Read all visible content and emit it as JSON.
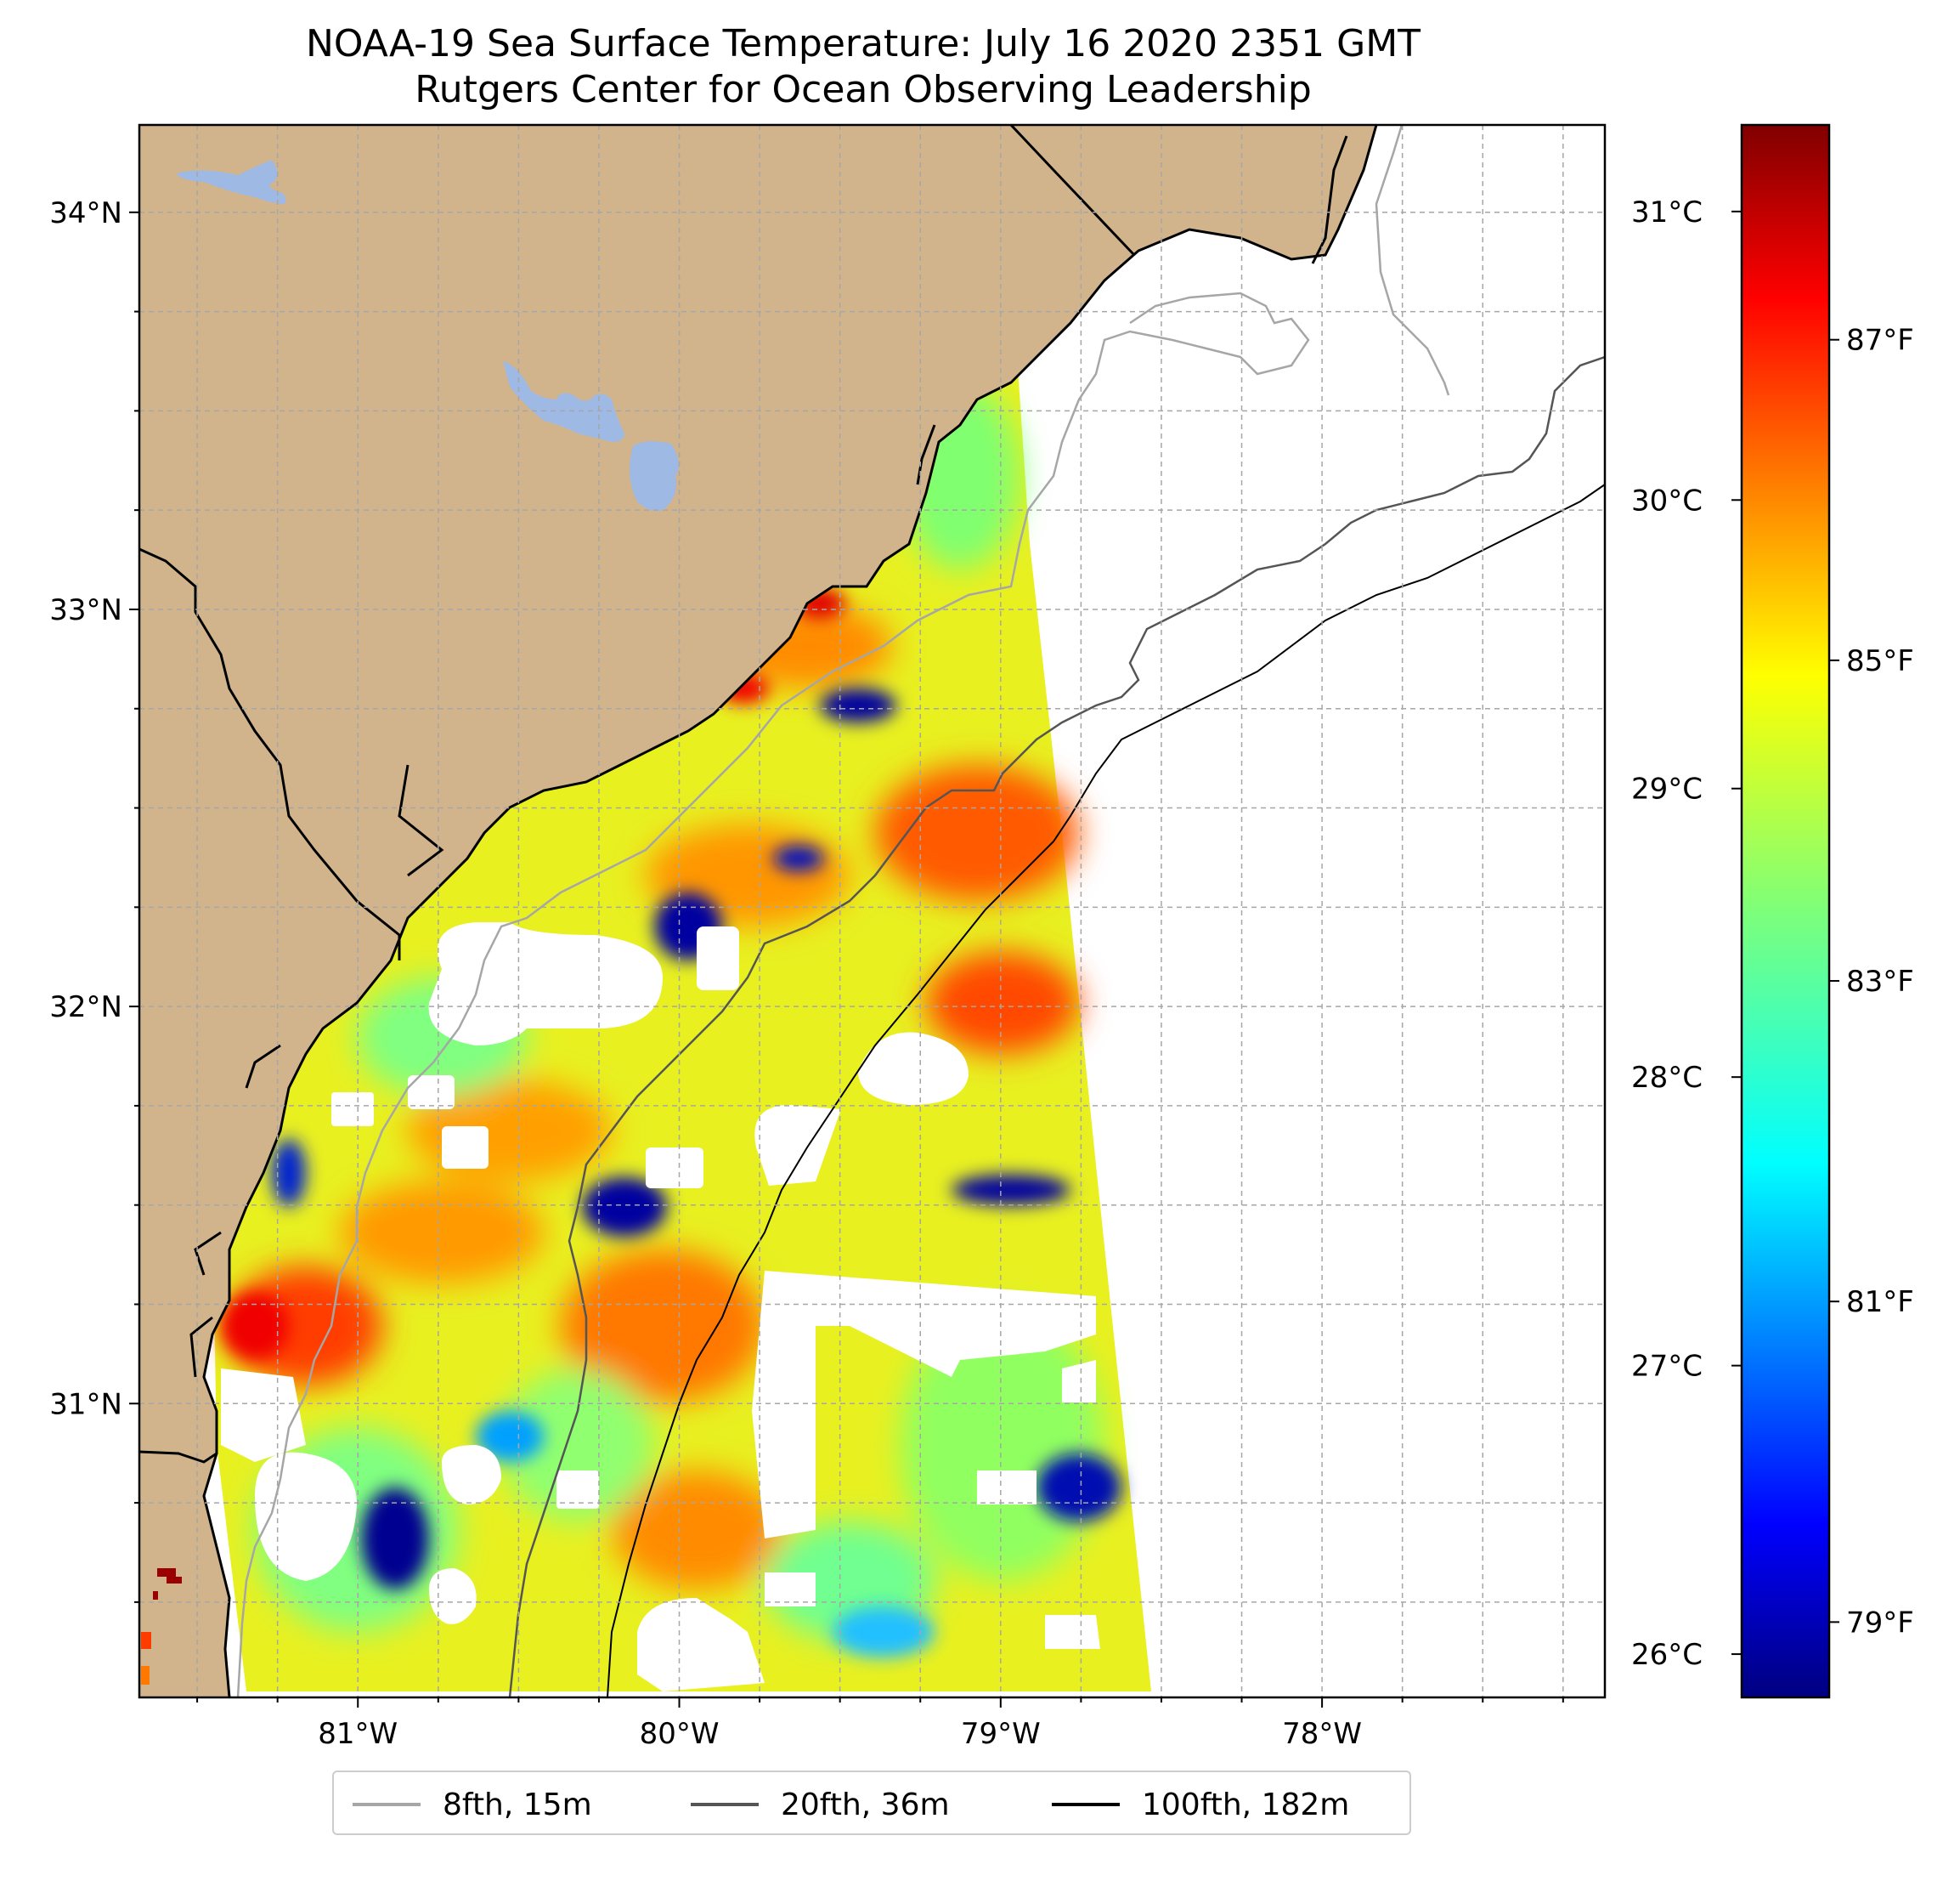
{
  "title": "NOAA-19 Sea Surface Temperature: July 16 2020 2351 GMT",
  "subtitle": "Rutgers Center for Ocean Observing Leadership",
  "colors": {
    "land": "#d2b48c",
    "lakes": "#9db9e4",
    "ocean_no_data": "#ffffff",
    "coastline": "#000000",
    "gridline": "#a6a6a6"
  },
  "colorbar": {
    "colormap": "jet",
    "celsius_ticks": [
      "31°C",
      "30°C",
      "29°C",
      "28°C",
      "27°C",
      "26°C"
    ],
    "celsius_values": [
      31,
      30,
      29,
      28,
      27,
      26
    ],
    "fahrenheit_ticks": [
      "87°F",
      "85°F",
      "83°F",
      "81°F",
      "79°F"
    ],
    "fahrenheit_values": [
      87,
      85,
      83,
      81,
      79
    ],
    "range_c": [
      25.85,
      31.3
    ]
  },
  "map": {
    "projection": "lat-lon",
    "lon_range": [
      -81.68,
      -77.12
    ],
    "lat_range": [
      30.26,
      34.22
    ],
    "lat_ticks": [
      "34°N",
      "33°N",
      "32°N",
      "31°N"
    ],
    "lat_values": [
      34,
      33,
      32,
      31
    ],
    "lon_ticks": [
      "81°W",
      "80°W",
      "79°W",
      "78°W"
    ],
    "lon_values": [
      -81,
      -80,
      -79,
      -78
    ],
    "grid": "dashed, every 0.25 degrees"
  },
  "legend": {
    "items": [
      {
        "label": "8fth, 15m",
        "color": "#a6a6a6"
      },
      {
        "label": "20fth, 36m",
        "color": "#555555"
      },
      {
        "label": "100fth, 182m",
        "color": "#000000"
      }
    ]
  }
}
